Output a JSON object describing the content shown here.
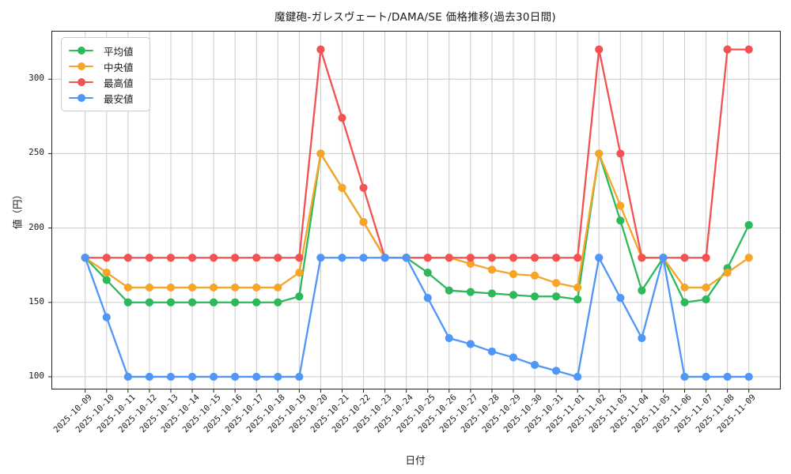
{
  "chart_data": {
    "type": "line",
    "title": "魔鍵砲-ガレスヴェート/DAMA/SE 価格推移(過去30日間)",
    "xlabel": "日付",
    "ylabel": "値（円）",
    "x": [
      "2025-10-09",
      "2025-10-10",
      "2025-10-11",
      "2025-10-12",
      "2025-10-13",
      "2025-10-14",
      "2025-10-15",
      "2025-10-16",
      "2025-10-17",
      "2025-10-18",
      "2025-10-19",
      "2025-10-20",
      "2025-10-21",
      "2025-10-22",
      "2025-10-23",
      "2025-10-24",
      "2025-10-25",
      "2025-10-26",
      "2025-10-27",
      "2025-10-28",
      "2025-10-29",
      "2025-10-30",
      "2025-10-31",
      "2025-11-01",
      "2025-11-02",
      "2025-11-03",
      "2025-11-04",
      "2025-11-05",
      "2025-11-06",
      "2025-11-07",
      "2025-11-08",
      "2025-11-09"
    ],
    "yticks": [
      "100",
      "150",
      "200",
      "250",
      "300"
    ],
    "ylim": [
      92,
      332
    ],
    "grid": true,
    "legend_position": "upper-left",
    "series": [
      {
        "name": "平均値",
        "color": "#2eb85c",
        "values": [
          180,
          165,
          150,
          150,
          150,
          150,
          150,
          150,
          150,
          150,
          154,
          250,
          227,
          204,
          180,
          180,
          170,
          158,
          157,
          156,
          155,
          154,
          154,
          152,
          250,
          205,
          158,
          180,
          150,
          152,
          173,
          202
        ]
      },
      {
        "name": "中央値",
        "color": "#f7a427",
        "values": [
          180,
          170,
          160,
          160,
          160,
          160,
          160,
          160,
          160,
          160,
          170,
          250,
          227,
          204,
          180,
          180,
          180,
          180,
          176,
          172,
          169,
          168,
          163,
          160,
          250,
          215,
          180,
          180,
          160,
          160,
          170,
          180
        ]
      },
      {
        "name": "最高値",
        "color": "#f25252",
        "values": [
          180,
          180,
          180,
          180,
          180,
          180,
          180,
          180,
          180,
          180,
          180,
          320,
          274,
          227,
          180,
          180,
          180,
          180,
          180,
          180,
          180,
          180,
          180,
          180,
          320,
          250,
          180,
          180,
          180,
          180,
          320,
          320
        ]
      },
      {
        "name": "最安値",
        "color": "#4e96f7",
        "values": [
          180,
          140,
          100,
          100,
          100,
          100,
          100,
          100,
          100,
          100,
          100,
          180,
          180,
          180,
          180,
          180,
          153,
          126,
          122,
          117,
          113,
          108,
          104,
          100,
          180,
          153,
          126,
          180,
          100,
          100,
          100,
          100
        ]
      }
    ],
    "grid_color": "#cccccc",
    "axis_color": "#222222"
  }
}
